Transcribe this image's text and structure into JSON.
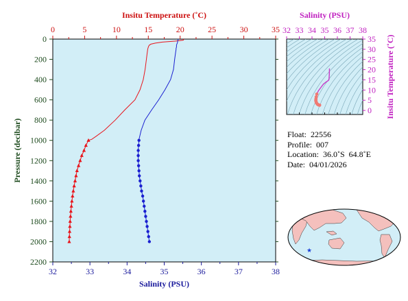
{
  "colors": {
    "background": "#d2eef7",
    "temperature": "#e8141b",
    "salinity": "#1a1fd0",
    "inset_profile": "#c837c8",
    "inset_density_contours": "#7aa7b8",
    "axis_dark": "#1d4a1d",
    "temp_axis": "#cc1010",
    "sal_axis": "#1a1a9c",
    "inset_axis": "#c020c0",
    "land": "#f4c0bd",
    "float_marker": "#1a3fd8"
  },
  "main_chart": {
    "top_axis_title": "Insitu Temperature (˚C)",
    "bottom_axis_title": "Salinity (PSU)",
    "left_axis_title": "Pressure (decibar)",
    "temp_ticks": [
      "0",
      "5",
      "10",
      "15",
      "20",
      "25",
      "30",
      "35"
    ],
    "sal_ticks": [
      "32",
      "33",
      "34",
      "35",
      "36",
      "37",
      "38"
    ],
    "pressure_ticks": [
      "0",
      "200",
      "400",
      "600",
      "800",
      "1000",
      "1200",
      "1400",
      "1600",
      "1800",
      "2000",
      "2200"
    ]
  },
  "inset": {
    "top_axis_title": "Salinity (PSU)",
    "right_axis_title": "Insitu Temperature (˚C)",
    "sal_ticks": [
      "32",
      "33",
      "34",
      "35",
      "36",
      "37",
      "38"
    ],
    "temp_ticks": [
      "0",
      "5",
      "10",
      "15",
      "20",
      "25",
      "30",
      "35"
    ]
  },
  "info": {
    "float": "Float:  22556",
    "profile": "Profile:  007",
    "location": "Location:  36.0˚S  64.8˚E",
    "date": "Date:  04/01/2026"
  },
  "map": {
    "float_marker_icon": "star-icon"
  },
  "chart_data": [
    {
      "type": "line",
      "series": [
        {
          "name": "Insitu Temperature",
          "x_axis": "temperature",
          "pressure": [
            0,
            10,
            20,
            30,
            40,
            50,
            60,
            70,
            80,
            90,
            100,
            150,
            200,
            300,
            400,
            500,
            600,
            700,
            800,
            900,
            960,
            990,
            1000,
            1050,
            1100,
            1150,
            1200,
            1250,
            1300,
            1350,
            1400,
            1450,
            1500,
            1550,
            1600,
            1650,
            1700,
            1750,
            1800,
            1850,
            1900,
            1950,
            2000
          ],
          "values": [
            20.6,
            20.5,
            19.2,
            17.2,
            16.1,
            15.4,
            15.15,
            15.05,
            15.0,
            14.95,
            14.9,
            14.8,
            14.7,
            14.5,
            14.2,
            13.7,
            12.9,
            11.3,
            9.8,
            8.1,
            6.8,
            6.1,
            5.6,
            5.2,
            4.9,
            4.55,
            4.3,
            4.05,
            3.8,
            3.65,
            3.5,
            3.35,
            3.22,
            3.1,
            3.0,
            2.92,
            2.84,
            2.78,
            2.72,
            2.68,
            2.64,
            2.61,
            2.58
          ],
          "markers_from_pressure": 1000,
          "xlim": [
            0,
            35
          ]
        },
        {
          "name": "Salinity",
          "x_axis": "salinity",
          "pressure": [
            0,
            10,
            20,
            30,
            40,
            50,
            60,
            70,
            80,
            90,
            100,
            150,
            200,
            300,
            400,
            500,
            600,
            700,
            800,
            900,
            960,
            990,
            1000,
            1050,
            1100,
            1150,
            1200,
            1250,
            1300,
            1350,
            1400,
            1450,
            1500,
            1550,
            1600,
            1650,
            1700,
            1750,
            1800,
            1850,
            1900,
            1950,
            2000
          ],
          "values": [
            35.38,
            35.37,
            35.36,
            35.36,
            35.35,
            35.34,
            35.33,
            35.33,
            35.33,
            35.32,
            35.32,
            35.3,
            35.28,
            35.25,
            35.17,
            35.02,
            34.85,
            34.66,
            34.48,
            34.38,
            34.34,
            34.32,
            34.32,
            34.31,
            34.3,
            34.3,
            34.3,
            34.31,
            34.32,
            34.33,
            34.35,
            34.37,
            34.39,
            34.42,
            34.44,
            34.46,
            34.48,
            34.5,
            34.52,
            34.54,
            34.56,
            34.58,
            34.6
          ],
          "markers_from_pressure": 1000,
          "xlim": [
            32,
            38
          ]
        }
      ],
      "ylim": [
        0,
        2200
      ],
      "y_inverted": true,
      "grid": false
    },
    {
      "type": "line",
      "series": [
        {
          "name": "T-S profile",
          "salinity": [
            35.38,
            35.36,
            35.34,
            35.33,
            35.3,
            35.25,
            35.1,
            34.9,
            34.7,
            34.5,
            34.38,
            34.33,
            34.31,
            34.3,
            34.32,
            34.36,
            34.42,
            34.48,
            34.54,
            34.6
          ],
          "temperature": [
            20.6,
            17.2,
            15.4,
            15.0,
            14.8,
            14.5,
            13.9,
            12.9,
            11.3,
            9.6,
            8.0,
            6.6,
            5.6,
            4.9,
            4.3,
            3.6,
            3.1,
            2.8,
            2.65,
            2.58
          ]
        }
      ],
      "xlim": [
        32,
        38
      ],
      "ylim": [
        -2,
        35
      ],
      "density_contours": true
    }
  ]
}
